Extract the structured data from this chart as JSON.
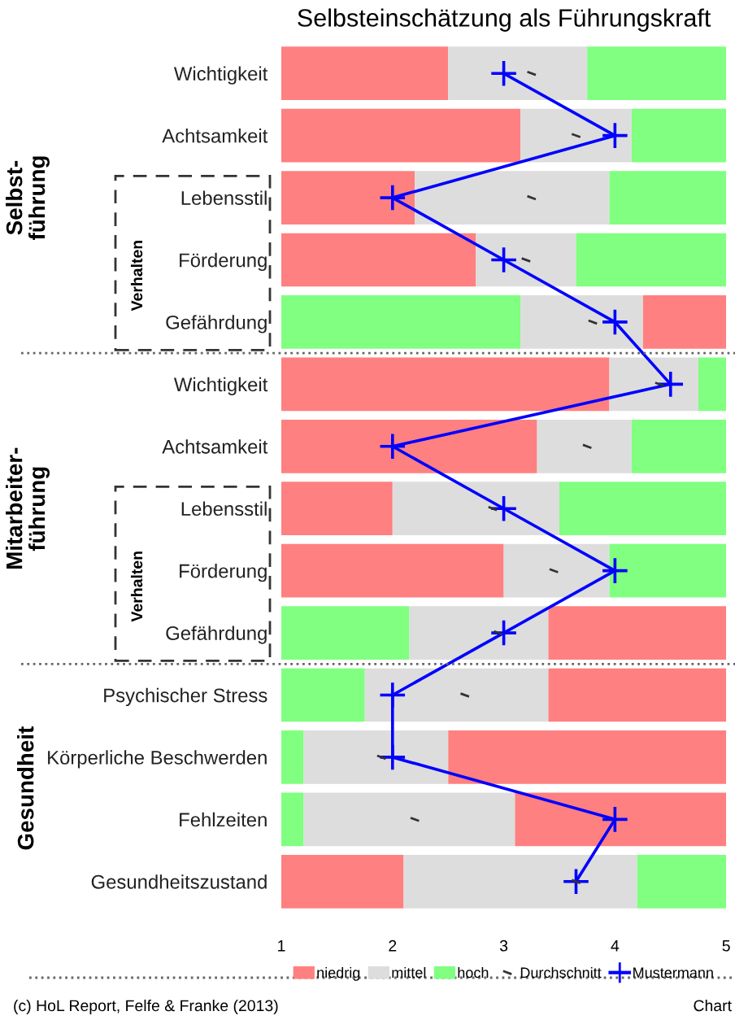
{
  "chart_data": {
    "type": "bar",
    "orientation": "horizontal",
    "title": "Selbsteinschätzung als Führungskraft",
    "categories": [
      "Wichtigkeit",
      "Achtsamkeit",
      "Lebensstil",
      "Förderung",
      "Gefährdung",
      "Wichtigkeit",
      "Achtsamkeit",
      "Lebensstil",
      "Förderung",
      "Gefährdung",
      "Psychischer Stress",
      "Körperliche Beschwerden",
      "Fehlzeiten",
      "Gesundheitszustand"
    ],
    "series": [
      {
        "name": "niedrig",
        "color": "#ff8080",
        "base": [
          1,
          1,
          1,
          1,
          4.25,
          1,
          1,
          1,
          1,
          3.4,
          3.4,
          2.5,
          3.1,
          1
        ],
        "values": [
          1.5,
          2.15,
          1.2,
          1.75,
          0.75,
          2.95,
          2.3,
          1,
          2,
          1.6,
          1.6,
          2.5,
          1.9,
          1.1
        ]
      },
      {
        "name": "mittel",
        "color": "#dddddd",
        "base": [
          2.5,
          3.15,
          2.2,
          2.75,
          3.15,
          3.95,
          3.3,
          2,
          3,
          2.15,
          1.75,
          1.2,
          1.2,
          2.1
        ],
        "values": [
          1.25,
          1,
          1.75,
          0.9,
          1.1,
          0.8,
          0.85,
          1.5,
          0.95,
          1.25,
          1.65,
          1.3,
          1.9,
          2.1
        ]
      },
      {
        "name": "hoch",
        "color": "#80ff80",
        "base": [
          3.75,
          4.15,
          3.95,
          3.65,
          1,
          4.75,
          4.15,
          3.5,
          3.95,
          1,
          1,
          1,
          1,
          4.2
        ],
        "values": [
          1.25,
          0.85,
          1.05,
          1.35,
          2.15,
          0.25,
          0.85,
          1.5,
          1.05,
          1.15,
          0.75,
          0.2,
          0.2,
          0.8
        ]
      },
      {
        "name": "Durchschnitt",
        "type": "scatter",
        "color": "#333333",
        "values": [
          3.25,
          3.65,
          3.25,
          3.2,
          3.8,
          4.4,
          3.75,
          2.9,
          3.45,
          2.95,
          2.65,
          1.9,
          2.2,
          3.65
        ]
      },
      {
        "name": "Mustermann",
        "type": "line",
        "color": "#0000ff",
        "marker": "cross",
        "line_style": "solid",
        "values": [
          3,
          4,
          2,
          3,
          4,
          4.5,
          2,
          3,
          4,
          3,
          2,
          2,
          4,
          3.65
        ]
      }
    ],
    "xlim": [
      1,
      5
    ],
    "xticks": [
      1,
      2,
      3,
      4,
      5
    ],
    "grid": false,
    "legend": "bottom",
    "annotations": [
      "Selbst-\nführung",
      "Mitarbeiter-\nführung",
      "Gesundheit",
      "Verhalten",
      "Verhalten",
      "(c) HoL Report, Felfe & Franke (2013)",
      "Chart"
    ]
  }
}
